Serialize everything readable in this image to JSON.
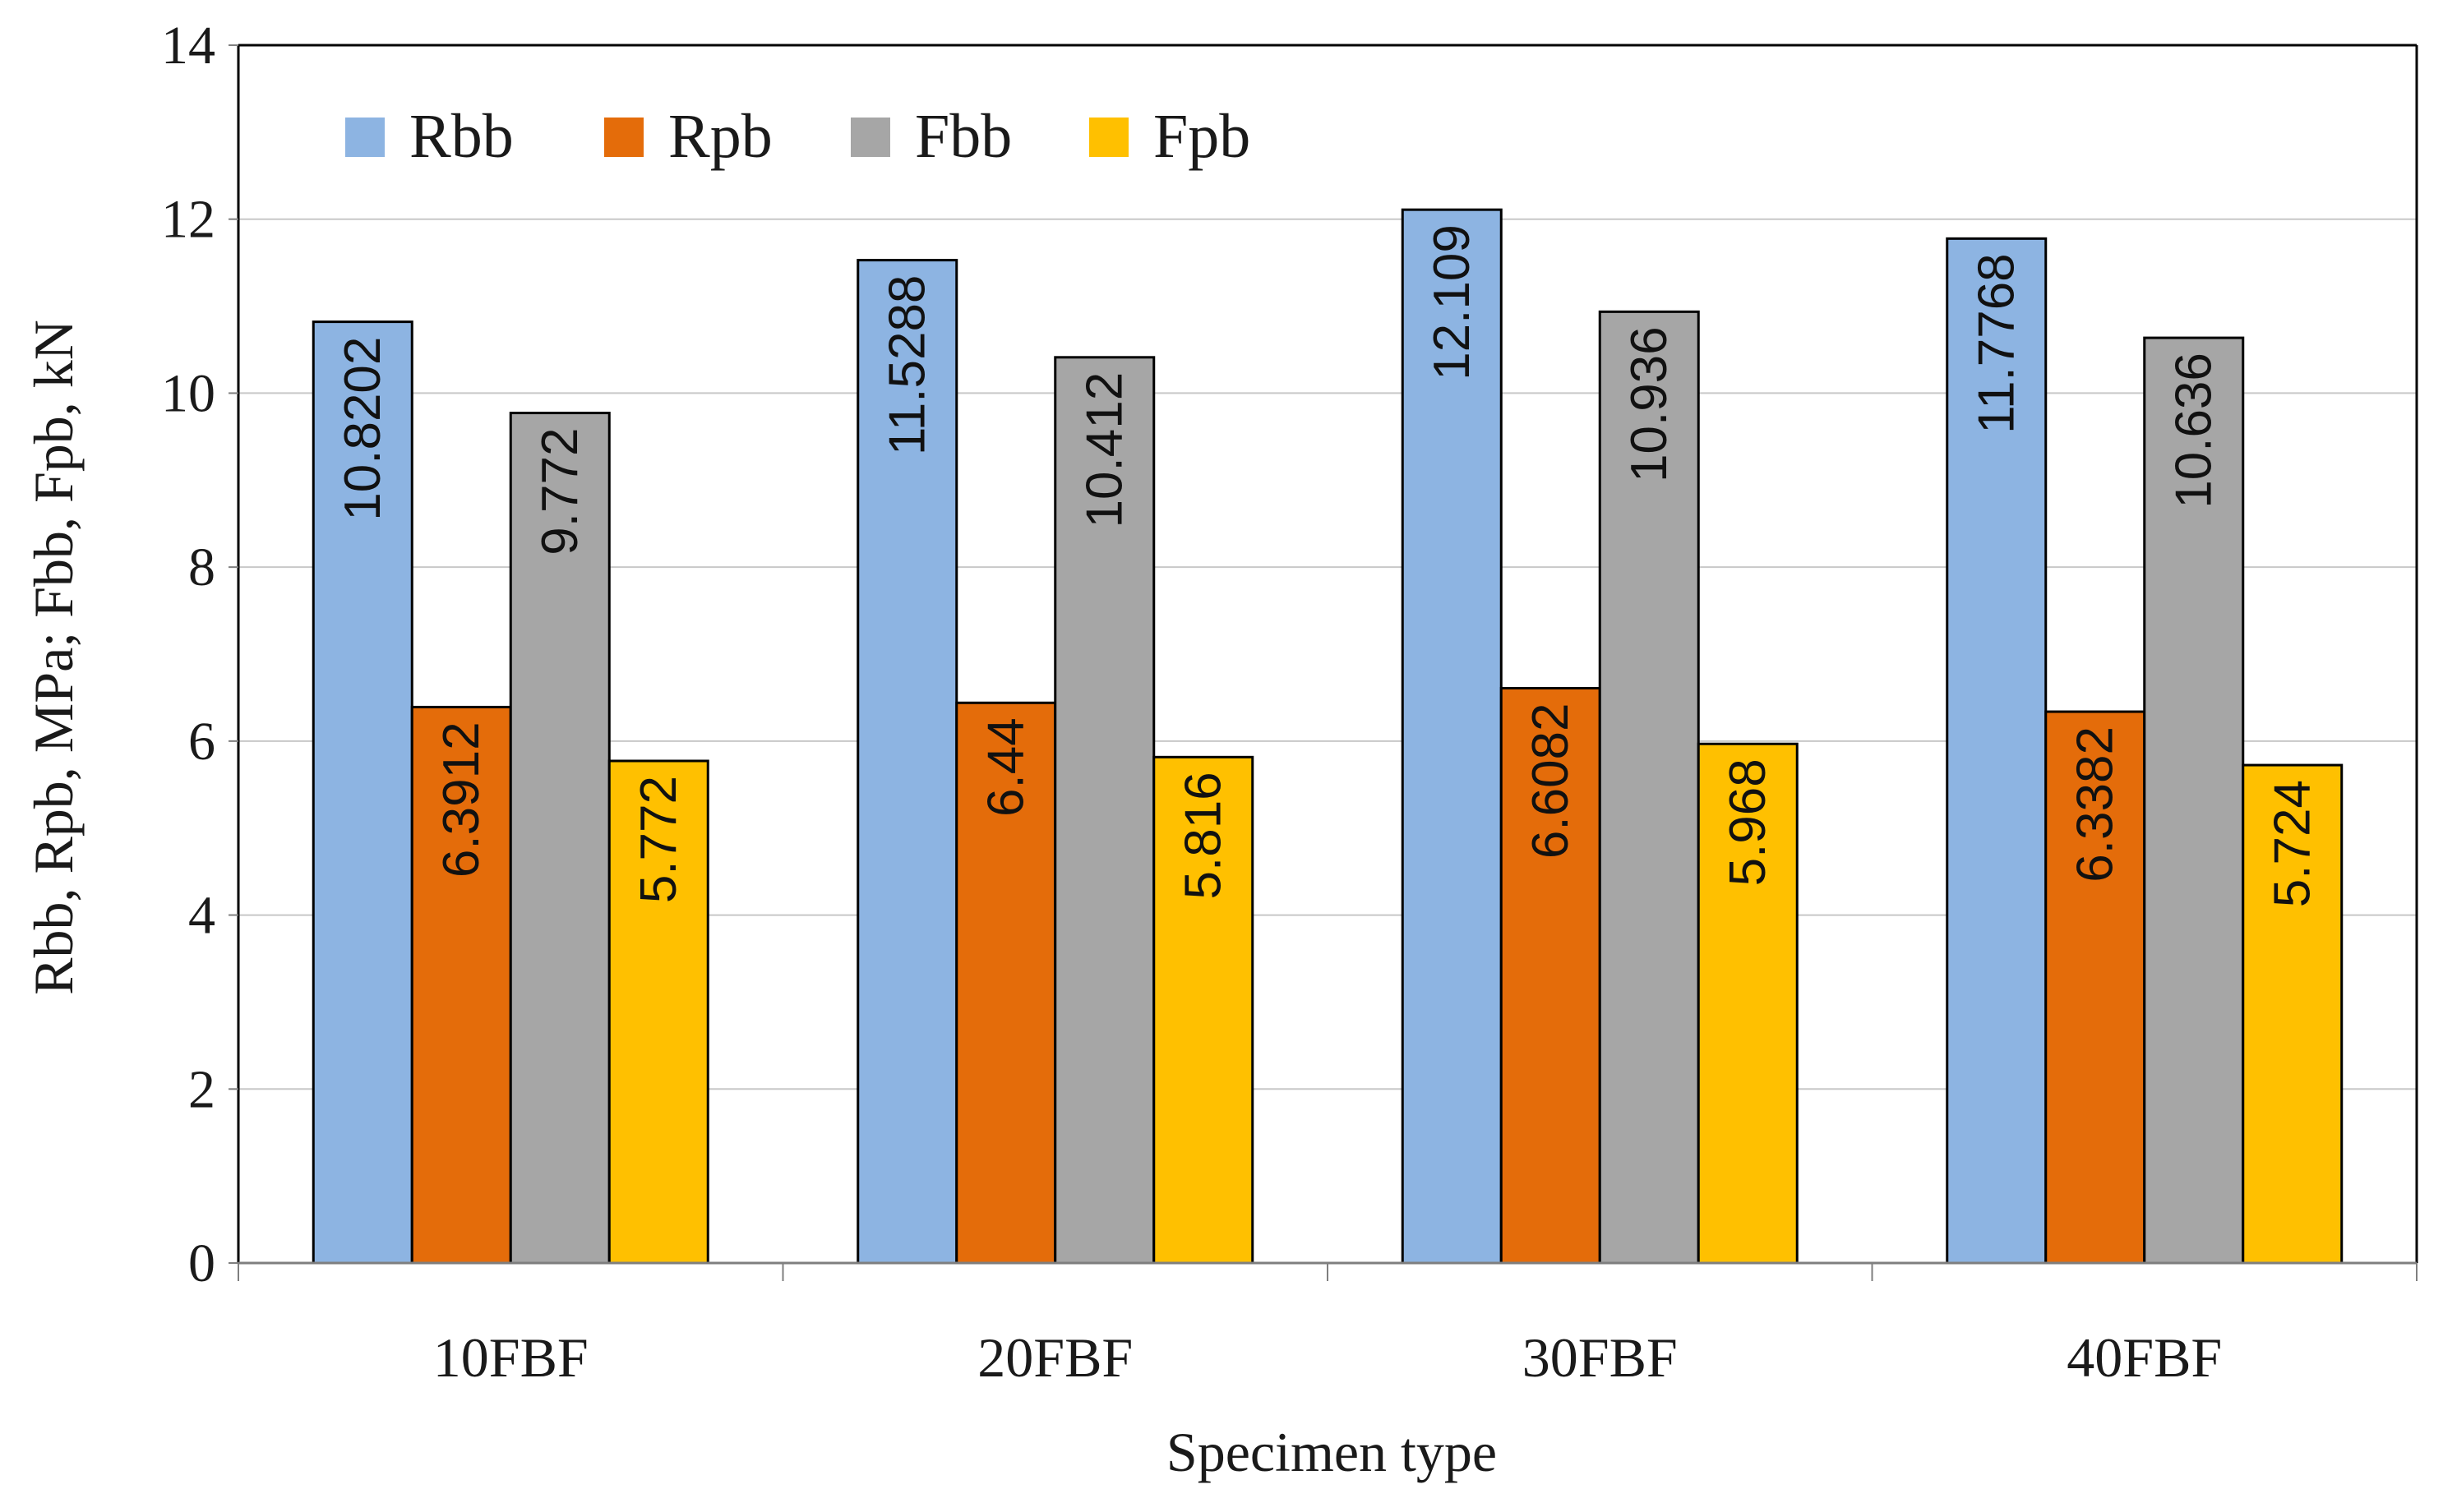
{
  "chart_data": {
    "type": "bar",
    "title": "",
    "xlabel": "Specimen type",
    "ylabel": "Rbb, Rpb, MPa; Fbb, Fpb, kN",
    "ylim": [
      0,
      14
    ],
    "yticks": [
      0,
      2,
      4,
      6,
      8,
      10,
      12,
      14
    ],
    "grid": true,
    "legend_position": "top-left",
    "categories": [
      "10FBF",
      "20FBF",
      "30FBF",
      "40FBF"
    ],
    "series": [
      {
        "name": "Rbb",
        "color": "#8DB4E2",
        "values": [
          10.8202,
          11.5288,
          12.109,
          11.7768
        ],
        "labels": [
          "10.8202",
          "11.5288",
          "12.109",
          "11.7768"
        ]
      },
      {
        "name": "Rpb",
        "color": "#E46C0A",
        "values": [
          6.3912,
          6.44,
          6.6082,
          6.3382
        ],
        "labels": [
          "6.3912",
          "6.44",
          "6.6082",
          "6.3382"
        ]
      },
      {
        "name": "Fbb",
        "color": "#A6A6A6",
        "values": [
          9.772,
          10.412,
          10.936,
          10.636
        ],
        "labels": [
          "9.772",
          "10.412",
          "10.936",
          "10.636"
        ]
      },
      {
        "name": "Fpb",
        "color": "#FFC000",
        "values": [
          5.772,
          5.816,
          5.968,
          5.724
        ],
        "labels": [
          "5.772",
          "5.816",
          "5.968",
          "5.724"
        ]
      }
    ]
  }
}
